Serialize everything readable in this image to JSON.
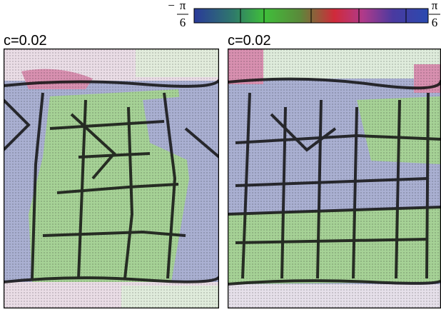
{
  "colorbar": {
    "min_label": {
      "sign": "−",
      "numerator": "π",
      "denominator": "6"
    },
    "max_label": {
      "numerator": "π",
      "denominator": "6"
    }
  },
  "panels": [
    {
      "label": "c=0.02"
    },
    {
      "label": "c=0.02"
    }
  ]
}
